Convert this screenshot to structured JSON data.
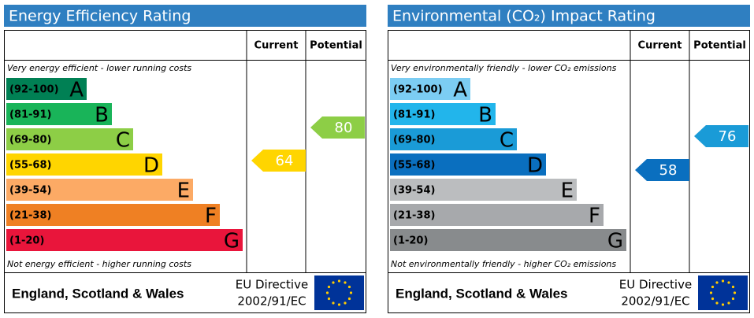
{
  "panels": [
    {
      "title": "Energy Efficiency Rating",
      "columns": [
        "Current",
        "Potential"
      ],
      "top_note": "Very energy efficient - lower running costs",
      "bottom_note": "Not energy efficient - higher running costs",
      "bands": [
        {
          "range": "(92-100)",
          "letter": "A",
          "color": "#008054"
        },
        {
          "range": "(81-91)",
          "letter": "B",
          "color": "#19b459"
        },
        {
          "range": "(69-80)",
          "letter": "C",
          "color": "#8dce46"
        },
        {
          "range": "(55-68)",
          "letter": "D",
          "color": "#ffd500"
        },
        {
          "range": "(39-54)",
          "letter": "E",
          "color": "#fcaa65"
        },
        {
          "range": "(21-38)",
          "letter": "F",
          "color": "#ef8023"
        },
        {
          "range": "(1-20)",
          "letter": "G",
          "color": "#e9153b"
        }
      ],
      "current": {
        "value": 64,
        "color": "#ffd500"
      },
      "potential": {
        "value": 80,
        "color": "#8dce46"
      },
      "footer": {
        "region": "England, Scotland & Wales",
        "directive": [
          "EU Directive",
          "2002/91/EC"
        ]
      }
    },
    {
      "title": "Environmental (CO₂) Impact Rating",
      "columns": [
        "Current",
        "Potential"
      ],
      "top_note": "Very environmentally friendly - lower CO₂ emissions",
      "bottom_note": "Not environmentally friendly - higher CO₂ emissions",
      "bands": [
        {
          "range": "(92-100)",
          "letter": "A",
          "color": "#7ccdf3"
        },
        {
          "range": "(81-91)",
          "letter": "B",
          "color": "#22b5eb"
        },
        {
          "range": "(69-80)",
          "letter": "C",
          "color": "#1a9bd7"
        },
        {
          "range": "(55-68)",
          "letter": "D",
          "color": "#0a6fbf"
        },
        {
          "range": "(39-54)",
          "letter": "E",
          "color": "#bbbdbf"
        },
        {
          "range": "(21-38)",
          "letter": "F",
          "color": "#a7a9ac"
        },
        {
          "range": "(1-20)",
          "letter": "G",
          "color": "#888b8d"
        }
      ],
      "current": {
        "value": 58,
        "color": "#0a6fbf"
      },
      "potential": {
        "value": 76,
        "color": "#1a9bd7"
      },
      "footer": {
        "region": "England, Scotland & Wales",
        "directive": [
          "EU Directive",
          "2002/91/EC"
        ]
      }
    }
  ]
}
